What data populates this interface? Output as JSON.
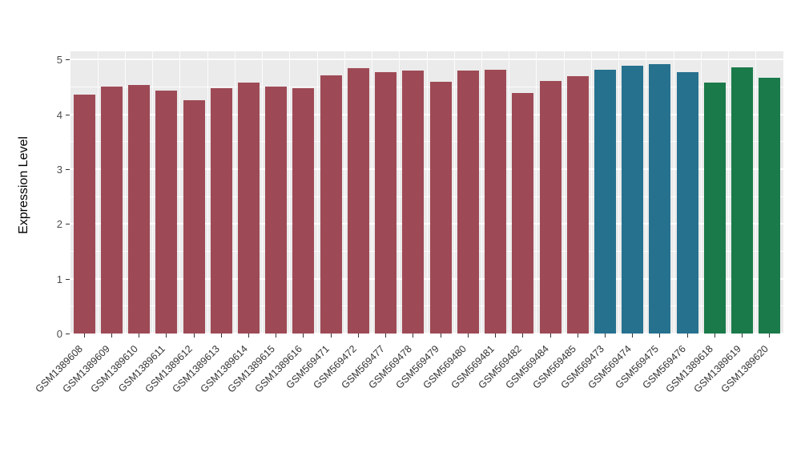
{
  "chart_data": {
    "type": "bar",
    "title": "",
    "xlabel": "",
    "ylabel": "Expression Level",
    "ylim": [
      0,
      5.15
    ],
    "yticks": [
      0,
      1,
      2,
      3,
      4,
      5
    ],
    "grid": "on",
    "panel_background": "#EBEBEB",
    "gridline_color": "#ffffff",
    "legend_position": "none",
    "categories": [
      "GSM1389608",
      "GSM1389609",
      "GSM1389610",
      "GSM1389611",
      "GSM1389612",
      "GSM1389613",
      "GSM1389614",
      "GSM1389615",
      "GSM1389616",
      "GSM569471",
      "GSM569472",
      "GSM569477",
      "GSM569478",
      "GSM569479",
      "GSM569480",
      "GSM569481",
      "GSM569482",
      "GSM569484",
      "GSM569485",
      "GSM569473",
      "GSM569474",
      "GSM569475",
      "GSM569476",
      "GSM1389618",
      "GSM1389619",
      "GSM1389620"
    ],
    "values": [
      4.36,
      4.5,
      4.53,
      4.44,
      4.26,
      4.47,
      4.58,
      4.5,
      4.48,
      4.71,
      4.85,
      4.77,
      4.8,
      4.59,
      4.8,
      4.81,
      4.39,
      4.61,
      4.69,
      4.82,
      4.89,
      4.91,
      4.77,
      4.58,
      4.86,
      4.67
    ],
    "group_colors": {
      "group1": "#9E4A56",
      "group2": "#26718E",
      "group3": "#1A7A4A"
    },
    "bar_groups": [
      "group1",
      "group1",
      "group1",
      "group1",
      "group1",
      "group1",
      "group1",
      "group1",
      "group1",
      "group1",
      "group1",
      "group1",
      "group1",
      "group1",
      "group1",
      "group1",
      "group1",
      "group1",
      "group1",
      "group2",
      "group2",
      "group2",
      "group2",
      "group3",
      "group3",
      "group3"
    ]
  }
}
